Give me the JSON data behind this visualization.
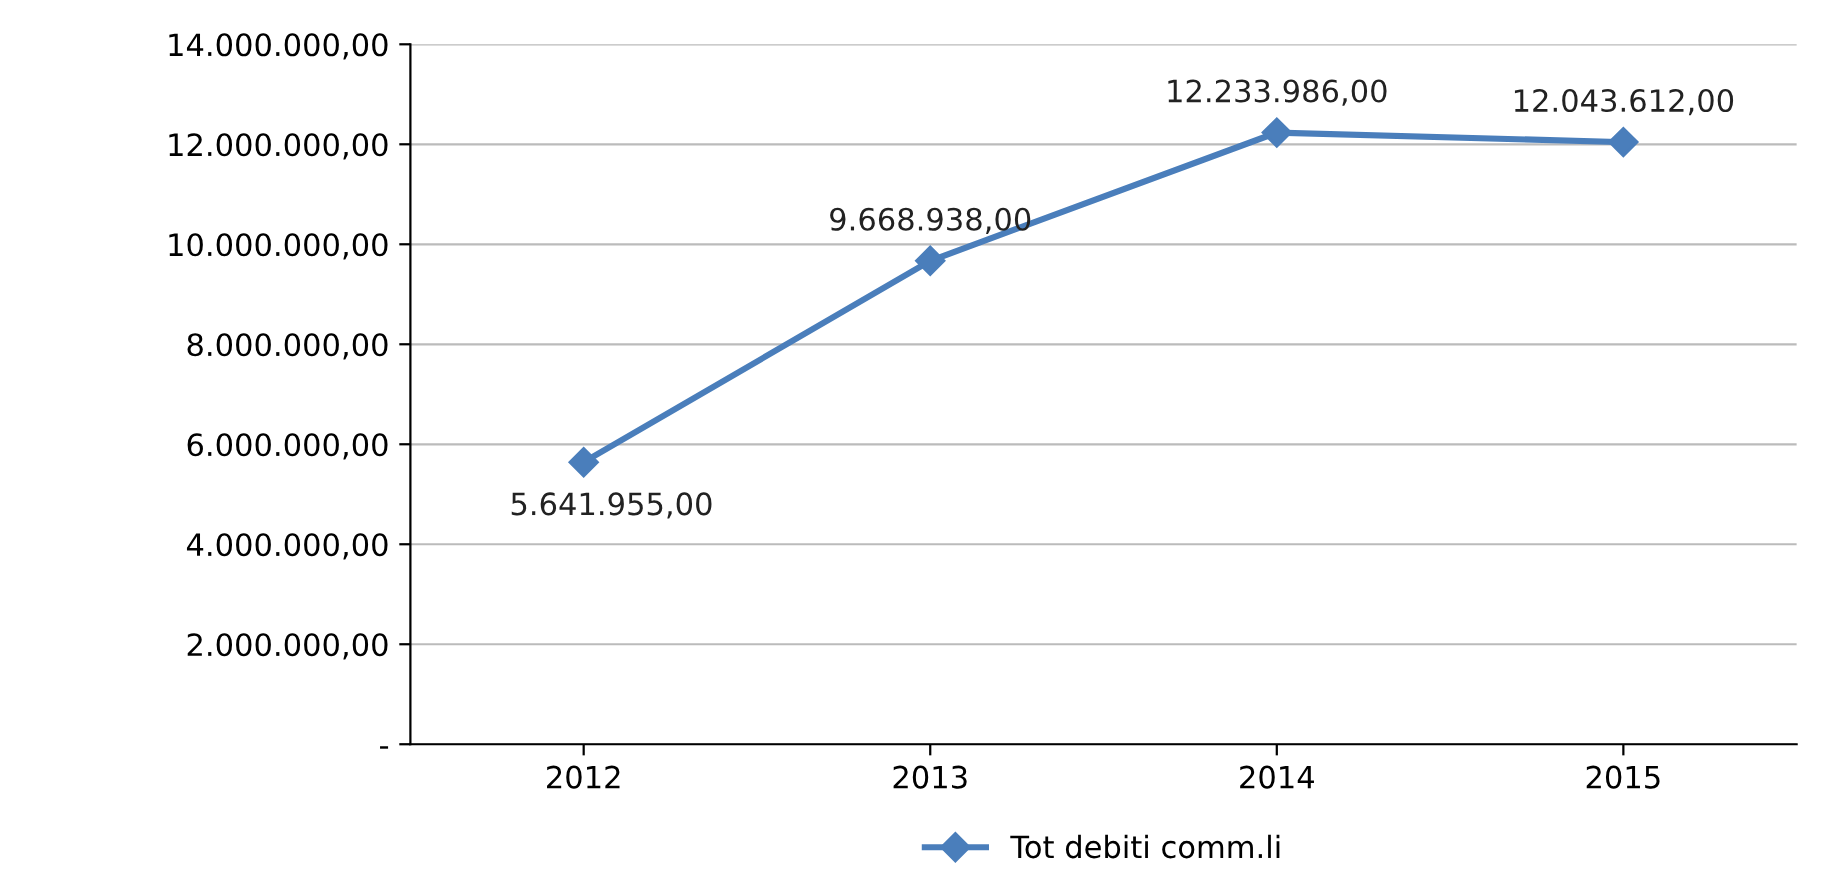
{
  "chart_data": {
    "type": "line",
    "categories": [
      "2012",
      "2013",
      "2014",
      "2015"
    ],
    "series": [
      {
        "name": "Tot debiti comm.li",
        "color": "#4a7ebb",
        "values": [
          5641955,
          9668938,
          12233986,
          12043612
        ],
        "value_labels": [
          "5.641.955,00",
          "9.668.938,00",
          "12.233.986,00",
          "12.043.612,00"
        ]
      }
    ],
    "ylim": [
      0,
      14000000
    ],
    "yticks": [
      {
        "value": 0,
        "label": "-"
      },
      {
        "value": 2000000,
        "label": "2.000.000,00"
      },
      {
        "value": 4000000,
        "label": "4.000.000,00"
      },
      {
        "value": 6000000,
        "label": "6.000.000,00"
      },
      {
        "value": 8000000,
        "label": "8.000.000,00"
      },
      {
        "value": 10000000,
        "label": "10.000.000,00"
      },
      {
        "value": 12000000,
        "label": "12.000.000,00"
      },
      {
        "value": 14000000,
        "label": "14.000.000,00"
      }
    ],
    "grid": "y",
    "legend": "bottom",
    "marker": "diamond",
    "line_style": "solid"
  }
}
